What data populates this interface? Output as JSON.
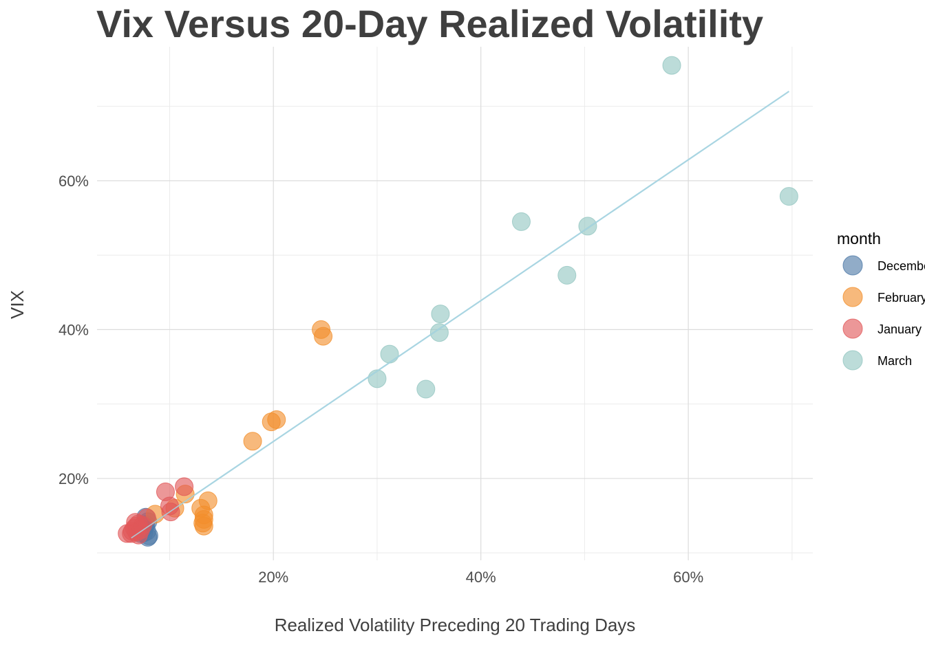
{
  "chart_data": {
    "type": "scatter",
    "title": "Vix Versus 20-Day Realized Volatility",
    "xlabel": "Realized Volatility Preceding 20 Trading Days",
    "ylabel": "VIX",
    "xlim": [
      0.03,
      0.72
    ],
    "ylim": [
      0.09,
      0.78
    ],
    "x_ticks": [
      0.2,
      0.4,
      0.6
    ],
    "x_tick_labels": [
      "20%",
      "40%",
      "60%"
    ],
    "y_ticks": [
      0.2,
      0.4,
      0.6
    ],
    "y_tick_labels": [
      "20%",
      "40%",
      "60%"
    ],
    "x_minor_gridlines": [
      0.1,
      0.3,
      0.5,
      0.7
    ],
    "y_minor_gridlines": [
      0.1,
      0.3,
      0.5,
      0.7
    ],
    "grid": true,
    "legend": {
      "title": "month",
      "position": "right"
    },
    "series": [
      {
        "name": "December",
        "color": "#4e79a7",
        "points": [
          {
            "x": 0.077,
            "y": 0.148
          },
          {
            "x": 0.079,
            "y": 0.142
          },
          {
            "x": 0.076,
            "y": 0.135
          },
          {
            "x": 0.078,
            "y": 0.129
          },
          {
            "x": 0.08,
            "y": 0.123
          },
          {
            "x": 0.075,
            "y": 0.127
          },
          {
            "x": 0.079,
            "y": 0.121
          },
          {
            "x": 0.073,
            "y": 0.132
          },
          {
            "x": 0.077,
            "y": 0.138
          },
          {
            "x": 0.072,
            "y": 0.126
          }
        ]
      },
      {
        "name": "February",
        "color": "#f28e2b",
        "points": [
          {
            "x": 0.246,
            "y": 0.4
          },
          {
            "x": 0.248,
            "y": 0.391
          },
          {
            "x": 0.203,
            "y": 0.279
          },
          {
            "x": 0.198,
            "y": 0.276
          },
          {
            "x": 0.18,
            "y": 0.25
          },
          {
            "x": 0.137,
            "y": 0.17
          },
          {
            "x": 0.115,
            "y": 0.179
          },
          {
            "x": 0.13,
            "y": 0.16
          },
          {
            "x": 0.133,
            "y": 0.151
          },
          {
            "x": 0.133,
            "y": 0.145
          },
          {
            "x": 0.132,
            "y": 0.14
          },
          {
            "x": 0.133,
            "y": 0.136
          },
          {
            "x": 0.105,
            "y": 0.16
          },
          {
            "x": 0.086,
            "y": 0.152
          }
        ]
      },
      {
        "name": "January",
        "color": "#e15759",
        "points": [
          {
            "x": 0.114,
            "y": 0.189
          },
          {
            "x": 0.096,
            "y": 0.182
          },
          {
            "x": 0.1,
            "y": 0.163
          },
          {
            "x": 0.101,
            "y": 0.155
          },
          {
            "x": 0.078,
            "y": 0.147
          },
          {
            "x": 0.07,
            "y": 0.139
          },
          {
            "x": 0.068,
            "y": 0.136
          },
          {
            "x": 0.066,
            "y": 0.133
          },
          {
            "x": 0.072,
            "y": 0.131
          },
          {
            "x": 0.064,
            "y": 0.129
          },
          {
            "x": 0.063,
            "y": 0.126
          },
          {
            "x": 0.068,
            "y": 0.128
          },
          {
            "x": 0.07,
            "y": 0.124
          },
          {
            "x": 0.059,
            "y": 0.126
          },
          {
            "x": 0.067,
            "y": 0.141
          },
          {
            "x": 0.074,
            "y": 0.137
          }
        ]
      },
      {
        "name": "March",
        "color": "#93c6c1",
        "points": [
          {
            "x": 0.584,
            "y": 0.755
          },
          {
            "x": 0.697,
            "y": 0.579
          },
          {
            "x": 0.439,
            "y": 0.545
          },
          {
            "x": 0.503,
            "y": 0.539
          },
          {
            "x": 0.483,
            "y": 0.473
          },
          {
            "x": 0.361,
            "y": 0.421
          },
          {
            "x": 0.36,
            "y": 0.396
          },
          {
            "x": 0.312,
            "y": 0.367
          },
          {
            "x": 0.3,
            "y": 0.334
          },
          {
            "x": 0.347,
            "y": 0.32
          }
        ]
      }
    ],
    "trendline": {
      "color": "#a8d5e2",
      "points": [
        {
          "x": 0.063,
          "y": 0.12
        },
        {
          "x": 0.697,
          "y": 0.72
        }
      ]
    }
  }
}
